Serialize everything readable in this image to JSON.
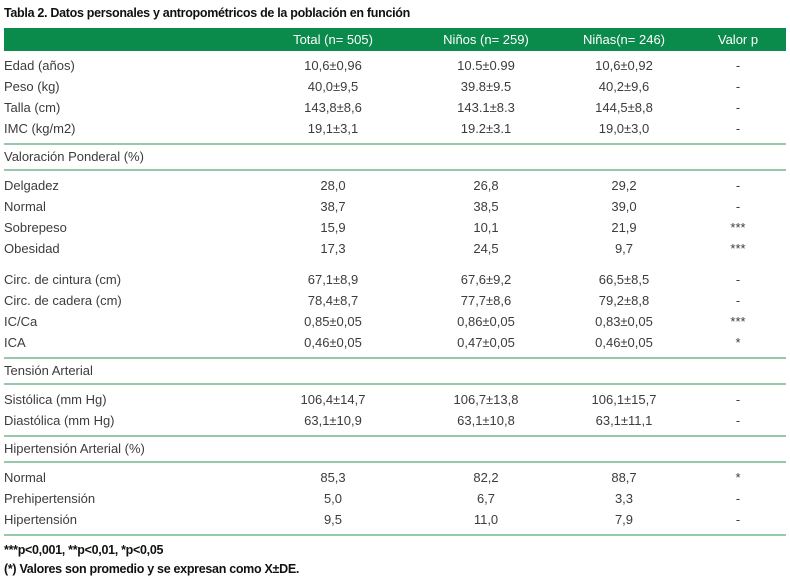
{
  "colors": {
    "header_bg": "#0a8a4b",
    "header_text": "#ffffff",
    "divider": "#96c8aa",
    "body_text": "#3c3c3c",
    "title_text": "#111111"
  },
  "table": {
    "title": "Tabla 2. Datos personales y antropométricos de la población en función",
    "columns": [
      "",
      "Total (n= 505)",
      "Niños (n= 259)",
      "Niñas(n= 246)",
      "Valor p"
    ],
    "sections": [
      {
        "kind": "rows",
        "rows": [
          [
            "Edad (años)",
            "10,6±0,96",
            "10.5±0.99",
            "10,6±0,92",
            "-"
          ],
          [
            "Peso (kg)",
            "40,0±9,5",
            "39.8±9.5",
            "40,2±9,6",
            "-"
          ],
          [
            "Talla (cm)",
            "143,8±8,6",
            "143.1±8.3",
            "144,5±8,8",
            "-"
          ],
          [
            "IMC (kg/m2)",
            "19,1±3,1",
            "19.2±3.1",
            "19,0±3,0",
            "-"
          ]
        ]
      },
      {
        "kind": "header",
        "label": "Valoración Ponderal (%)"
      },
      {
        "kind": "rows",
        "rows": [
          [
            "Delgadez",
            "28,0",
            "26,8",
            "29,2",
            "-"
          ],
          [
            "Normal",
            "38,7",
            "38,5",
            "39,0",
            "-"
          ],
          [
            "Sobrepeso",
            "15,9",
            "10,1",
            "21,9",
            "***"
          ],
          [
            "Obesidad",
            "17,3",
            "24,5",
            "9,7",
            "***"
          ]
        ]
      },
      {
        "kind": "gap"
      },
      {
        "kind": "rows",
        "rows": [
          [
            "Circ. de cintura (cm)",
            "67,1±8,9",
            "67,6±9,2",
            "66,5±8,5",
            "-"
          ],
          [
            "Circ. de cadera (cm)",
            "78,4±8,7",
            "77,7±8,6",
            "79,2±8,8",
            "-"
          ],
          [
            "IC/Ca",
            "0,85±0,05",
            "0,86±0,05",
            "0,83±0,05",
            "***"
          ],
          [
            "ICA",
            "0,46±0,05",
            "0,47±0,05",
            "0,46±0,05",
            "*"
          ]
        ]
      },
      {
        "kind": "header",
        "label": "Tensión Arterial"
      },
      {
        "kind": "rows",
        "rows": [
          [
            "Sistólica (mm Hg)",
            "106,4±14,7",
            "106,7±13,8",
            "106,1±15,7",
            "-"
          ],
          [
            "Diastólica (mm Hg)",
            "63,1±10,9",
            "63,1±10,8",
            "63,1±11,1",
            "-"
          ]
        ]
      },
      {
        "kind": "header",
        "label": "Hipertensión Arterial (%)"
      },
      {
        "kind": "rows",
        "rows": [
          [
            "Normal",
            "85,3",
            "82,2",
            "88,7",
            "*"
          ],
          [
            "Prehipertensión",
            "5,0",
            "6,7",
            "3,3",
            "-"
          ],
          [
            "Hipertensión",
            "9,5",
            "11,0",
            "7,9",
            "-"
          ]
        ]
      }
    ],
    "footnotes": [
      "***p<0,001, **p<0,01, *p<0,05",
      "(*) Valores son promedio y se expresan como X±DE."
    ]
  }
}
